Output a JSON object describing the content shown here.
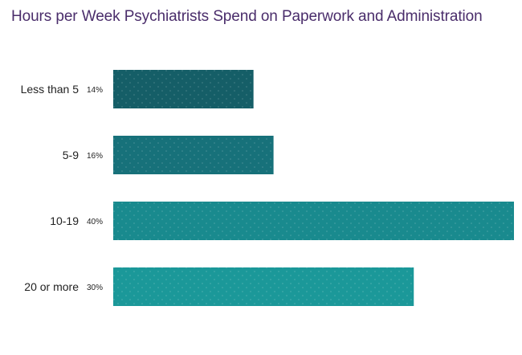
{
  "chart_data": {
    "type": "bar",
    "orientation": "horizontal",
    "title": "Hours per Week Psychiatrists Spend on Paperwork and Administration",
    "categories": [
      "Less than 5",
      "5-9",
      "10-19",
      "20 or more"
    ],
    "values": [
      14,
      16,
      40,
      30
    ],
    "value_labels": [
      "14%",
      "16%",
      "40%",
      "30%"
    ],
    "xlim": [
      0,
      40
    ],
    "grid": false,
    "legend": "none",
    "colors": [
      "#155e67",
      "#17717a",
      "#198a8e",
      "#1b9899"
    ]
  }
}
